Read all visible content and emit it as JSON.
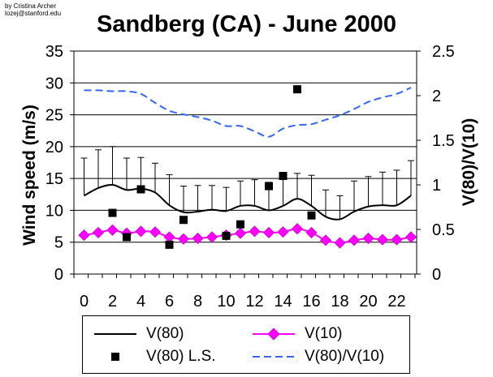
{
  "credit": {
    "line1": "by Cristina Archer",
    "line2": "lozej@stanford.edu"
  },
  "chart_data": {
    "type": "line",
    "title": "Sandberg (CA) - June 2000",
    "xlabel": "",
    "ylabel": "Wind speed (m/s)",
    "y2label": "V(80)/V(10)",
    "x": [
      0,
      1,
      2,
      3,
      4,
      5,
      6,
      7,
      8,
      9,
      10,
      11,
      12,
      13,
      14,
      15,
      16,
      17,
      18,
      19,
      20,
      21,
      22,
      23
    ],
    "xlim": [
      -0.5,
      23.5
    ],
    "ylim": [
      0,
      35
    ],
    "y2lim": [
      0,
      2.5
    ],
    "xticks": [
      "0",
      "2",
      "4",
      "6",
      "8",
      "10",
      "12",
      "14",
      "16",
      "18",
      "20",
      "22"
    ],
    "yticks": [
      "0",
      "5",
      "10",
      "15",
      "20",
      "25",
      "30",
      "35"
    ],
    "y2ticks": [
      "0",
      "0.5",
      "1",
      "1.5",
      "2",
      "2.5"
    ],
    "grid": "horizontal major gridlines",
    "legend_position": "bottom",
    "series": [
      {
        "name": "V(80)",
        "axis": "left",
        "color": "#000000",
        "style": "solid",
        "values": [
          12.3,
          13.5,
          14.0,
          13.2,
          13.4,
          12.8,
          10.8,
          9.7,
          9.8,
          10.1,
          9.9,
          10.7,
          10.7,
          10.0,
          10.7,
          11.8,
          10.7,
          9.0,
          8.6,
          9.8,
          10.6,
          10.8,
          10.8,
          12.3
        ],
        "error_upper": [
          18.2,
          19.5,
          20.0,
          18.2,
          18.3,
          17.4,
          15.6,
          13.8,
          13.9,
          13.9,
          13.6,
          14.6,
          14.8,
          14.4,
          15.9,
          15.8,
          15.5,
          13.2,
          12.3,
          14.6,
          15.3,
          16.0,
          16.3,
          17.8
        ]
      },
      {
        "name": "V(10)",
        "axis": "left",
        "color": "#ff00ff",
        "style": "diamond-markers",
        "values": [
          6.1,
          6.5,
          6.9,
          6.4,
          6.7,
          6.6,
          5.8,
          5.5,
          5.6,
          5.8,
          6.1,
          6.4,
          6.7,
          6.5,
          6.6,
          7.1,
          6.5,
          5.3,
          4.9,
          5.3,
          5.6,
          5.4,
          5.4,
          5.8
        ]
      },
      {
        "name": "V(80) L.S.",
        "axis": "left",
        "color": "#000000",
        "style": "square-markers",
        "x": [
          2,
          3,
          4,
          6,
          7,
          10,
          11,
          13,
          14,
          15,
          16
        ],
        "values": [
          9.6,
          5.8,
          13.3,
          4.6,
          8.5,
          6.0,
          7.8,
          13.8,
          15.4,
          29.0,
          9.2
        ]
      },
      {
        "name": "V(80)/V(10)",
        "axis": "right",
        "color": "#3366ff",
        "style": "dashed",
        "values": [
          2.06,
          2.06,
          2.05,
          2.05,
          2.02,
          1.92,
          1.83,
          1.79,
          1.76,
          1.72,
          1.66,
          1.66,
          1.6,
          1.54,
          1.63,
          1.67,
          1.68,
          1.73,
          1.78,
          1.85,
          1.93,
          1.98,
          2.02,
          2.09
        ]
      }
    ]
  }
}
